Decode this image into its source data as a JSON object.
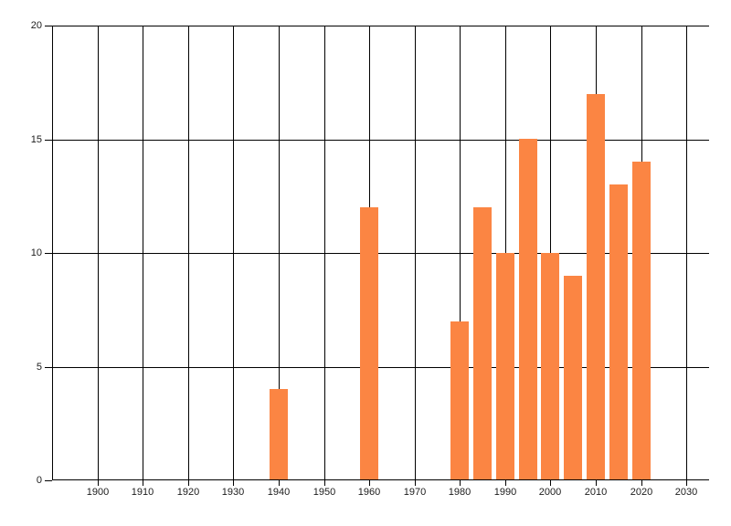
{
  "chart_data": {
    "type": "bar",
    "x": [
      1940,
      1960,
      1980,
      1985,
      1990,
      1995,
      2000,
      2005,
      2010,
      2015,
      2020
    ],
    "values": [
      4,
      12,
      7,
      12,
      10,
      15,
      10,
      9,
      17,
      13,
      14
    ],
    "xlim": [
      1890,
      2035
    ],
    "ylim": [
      0,
      20
    ],
    "bar_width_years": 4,
    "x_gridlines": [
      1890,
      1900,
      1910,
      1920,
      1930,
      1940,
      1950,
      1960,
      1970,
      1980,
      1990,
      2000,
      2010,
      2020,
      2030
    ],
    "x_ticks": [
      1900,
      1910,
      1920,
      1930,
      1940,
      1950,
      1960,
      1970,
      1980,
      1990,
      2000,
      2010,
      2020,
      2030
    ],
    "x_tick_labels": [
      "1900",
      "1910",
      "1920",
      "1930",
      "1940",
      "1950",
      "1960",
      "1970",
      "1980",
      "1990",
      "2000",
      "2010",
      "2020",
      "2030"
    ],
    "y_ticks": [
      0,
      5,
      10,
      15,
      20
    ],
    "y_tick_labels": [
      "0",
      "5",
      "10",
      "15",
      "20"
    ],
    "grid": true,
    "legend": false,
    "colors": {
      "bar": "#fb8543",
      "grid": "#000000",
      "text": "#1c1c1c",
      "background": "#ffffff"
    }
  }
}
